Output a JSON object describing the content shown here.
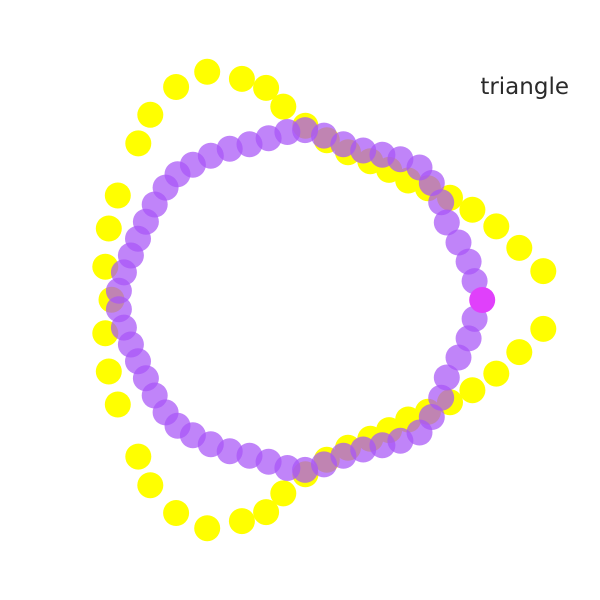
{
  "chart_data": {
    "type": "scatter",
    "title": "",
    "xlabel": "",
    "ylabel": "",
    "grid": false,
    "legend": "none",
    "xlim": [
      -1.95,
      1.85
    ],
    "ylim": [
      -1.9,
      1.9
    ],
    "annotations": [
      {
        "text": "triangle"
      }
    ],
    "series": [
      {
        "color": "#ffff00",
        "opacity": 1,
        "marker": "circle",
        "x": [
          1.491,
          1.339,
          1.193,
          1.042,
          0.9,
          0.76,
          0.635,
          0.514,
          0.395,
          0.254,
          0.12,
          -0.016,
          -0.156,
          -0.265,
          -0.418,
          -0.638,
          -0.835,
          -0.998,
          -1.074,
          -1.204,
          -1.261,
          -1.283,
          -1.244,
          -1.283,
          -1.261,
          -1.204,
          -1.074,
          -0.998,
          -0.835,
          -0.638,
          -0.418,
          -0.265,
          -0.156,
          -0.016,
          0.12,
          0.254,
          0.395,
          0.514,
          0.635,
          0.76,
          0.9,
          1.042,
          1.193,
          1.339,
          1.491
        ],
        "y": [
          0.183,
          0.33,
          0.466,
          0.571,
          0.648,
          0.708,
          0.757,
          0.824,
          0.879,
          0.936,
          1.012,
          1.104,
          1.225,
          1.343,
          1.4,
          1.445,
          1.349,
          1.173,
          0.992,
          0.662,
          0.453,
          0.211,
          0.002,
          -0.211,
          -0.453,
          -0.662,
          -0.992,
          -1.173,
          -1.349,
          -1.445,
          -1.4,
          -1.343,
          -1.225,
          -1.104,
          -1.012,
          -0.936,
          -0.879,
          -0.824,
          -0.757,
          -0.708,
          -0.648,
          -0.571,
          -0.466,
          -0.33,
          -0.183
        ]
      },
      {
        "color": "#a855f7",
        "opacity": 0.72,
        "marker": "circle",
        "x": [
          1.056,
          1.018,
          0.954,
          0.88,
          0.844,
          0.785,
          0.707,
          0.586,
          0.472,
          0.35,
          0.225,
          0.102,
          -0.018,
          -0.13,
          -0.249,
          -0.37,
          -0.495,
          -0.615,
          -0.728,
          -0.826,
          -0.901,
          -0.97,
          -1.026,
          -1.076,
          -1.121,
          -1.165,
          -1.197,
          -1.197,
          -1.165,
          -1.121,
          -1.076,
          -1.026,
          -0.97,
          -0.901,
          -0.826,
          -0.728,
          -0.615,
          -0.495,
          -0.37,
          -0.249,
          -0.13,
          -0.018,
          0.102,
          0.225,
          0.35,
          0.472,
          0.586,
          0.707,
          0.785,
          0.844,
          0.88,
          0.954,
          1.018,
          1.056
        ],
        "y": [
          0.12,
          0.243,
          0.364,
          0.491,
          0.619,
          0.741,
          0.839,
          0.892,
          0.92,
          0.947,
          0.987,
          1.041,
          1.076,
          1.064,
          1.025,
          0.986,
          0.958,
          0.914,
          0.857,
          0.797,
          0.712,
          0.605,
          0.496,
          0.388,
          0.282,
          0.175,
          0.058,
          -0.058,
          -0.175,
          -0.282,
          -0.388,
          -0.496,
          -0.605,
          -0.712,
          -0.797,
          -0.857,
          -0.914,
          -0.958,
          -0.986,
          -1.025,
          -1.064,
          -1.076,
          -1.041,
          -0.987,
          -0.947,
          -0.92,
          -0.892,
          -0.839,
          -0.741,
          -0.619,
          -0.491,
          -0.364,
          -0.243,
          -0.12
        ]
      },
      {
        "color": "#e040fb",
        "opacity": 1,
        "marker": "circle",
        "x": [
          1.104
        ],
        "y": [
          0
        ]
      }
    ]
  }
}
